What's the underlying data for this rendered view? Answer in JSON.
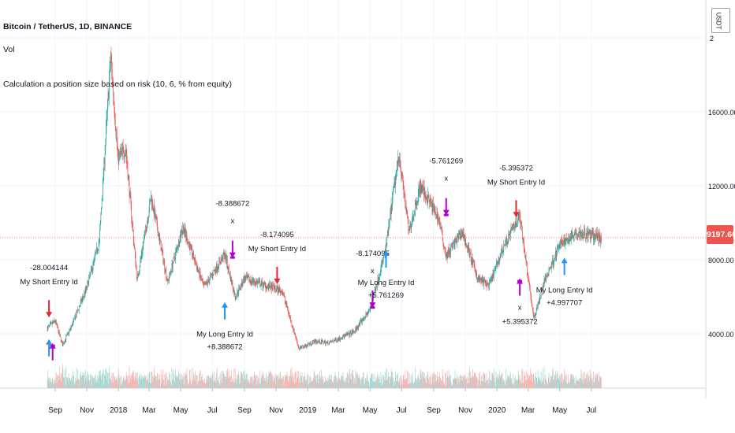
{
  "header": {
    "title": "Bitcoin / TetherUS, 1D, BINANCE",
    "volume_label": "Vol",
    "study_label": "Calculation a position size based on risk (10, 6, % from equity)"
  },
  "currency_button": "USDT",
  "last_price": "9197.60",
  "colors": {
    "up": "#26a69a",
    "down": "#ef5350",
    "long_arrow": "#2196f3",
    "exit_arrow": "#b000cc",
    "short_arrow": "#e8262e"
  },
  "chart_data": {
    "type": "candlestick",
    "y_ticks": [
      "2",
      "4000.00",
      "8000.00",
      "12000.00",
      "16000.00"
    ],
    "x_ticks": [
      "Sep",
      "Nov",
      "2018",
      "Mar",
      "May",
      "Jul",
      "Sep",
      "Nov",
      "2019",
      "Mar",
      "May",
      "Jul",
      "Sep",
      "Nov",
      "2020",
      "Mar",
      "May",
      "Jul"
    ],
    "price_path": [
      {
        "date": "2017-08-17",
        "close": 4300
      },
      {
        "date": "2017-09-01",
        "close": 4700
      },
      {
        "date": "2017-09-15",
        "close": 3400
      },
      {
        "date": "2017-10-01",
        "close": 4300
      },
      {
        "date": "2017-11-01",
        "close": 6500
      },
      {
        "date": "2017-11-25",
        "close": 9000
      },
      {
        "date": "2017-12-17",
        "close": 19000
      },
      {
        "date": "2017-12-31",
        "close": 13500
      },
      {
        "date": "2018-01-15",
        "close": 14000
      },
      {
        "date": "2018-02-06",
        "close": 6900
      },
      {
        "date": "2018-03-05",
        "close": 11400
      },
      {
        "date": "2018-04-06",
        "close": 6800
      },
      {
        "date": "2018-05-05",
        "close": 9800
      },
      {
        "date": "2018-06-15",
        "close": 6500
      },
      {
        "date": "2018-07-25",
        "close": 8300
      },
      {
        "date": "2018-08-14",
        "close": 6000
      },
      {
        "date": "2018-09-01",
        "close": 7000
      },
      {
        "date": "2018-11-13",
        "close": 6300
      },
      {
        "date": "2018-12-15",
        "close": 3200
      },
      {
        "date": "2019-01-15",
        "close": 3600
      },
      {
        "date": "2019-02-10",
        "close": 3500
      },
      {
        "date": "2019-03-31",
        "close": 4100
      },
      {
        "date": "2019-05-01",
        "close": 5300
      },
      {
        "date": "2019-05-31",
        "close": 8500
      },
      {
        "date": "2019-06-26",
        "close": 13800
      },
      {
        "date": "2019-07-15",
        "close": 9500
      },
      {
        "date": "2019-08-06",
        "close": 12000
      },
      {
        "date": "2019-09-10",
        "close": 10300
      },
      {
        "date": "2019-09-25",
        "close": 8200
      },
      {
        "date": "2019-10-26",
        "close": 9500
      },
      {
        "date": "2019-11-25",
        "close": 7000
      },
      {
        "date": "2019-12-17",
        "close": 6600
      },
      {
        "date": "2020-01-15",
        "close": 8800
      },
      {
        "date": "2020-02-14",
        "close": 10400
      },
      {
        "date": "2020-03-12",
        "close": 4800
      },
      {
        "date": "2020-04-01",
        "close": 6800
      },
      {
        "date": "2020-05-01",
        "close": 8800
      },
      {
        "date": "2020-06-01",
        "close": 9500
      },
      {
        "date": "2020-07-20",
        "close": 9197.6
      }
    ],
    "signals": [
      {
        "kind": "short",
        "label": "My Short Entry Id",
        "value": "-28.004144",
        "date": "2017-08-20",
        "anchor_price": 4800
      },
      {
        "kind": "long",
        "label": "",
        "value": "",
        "date": "2017-08-20",
        "anchor_price": 3800
      },
      {
        "kind": "exit",
        "label": "",
        "value": "",
        "date": "2017-08-27",
        "anchor_price": 3500
      },
      {
        "kind": "long",
        "label": "My Long Entry Id",
        "value": "+8.388672",
        "date": "2018-07-25",
        "anchor_price": 5800
      },
      {
        "kind": "exit",
        "label": "x",
        "value": "-8.388672",
        "date": "2018-08-09",
        "anchor_price": 8100
      },
      {
        "kind": "short",
        "label": "My Short Entry Id",
        "value": "-8.174095",
        "date": "2018-11-03",
        "anchor_price": 6600
      },
      {
        "kind": "exit",
        "label": "x",
        "value": "-8.174095",
        "date": "2019-05-06",
        "anchor_price": 5400
      },
      {
        "kind": "long",
        "label": "My Long Entry Id",
        "value": "+5.761269",
        "date": "2019-06-01",
        "anchor_price": 8600
      },
      {
        "kind": "exit",
        "label": "x",
        "value": "-5.761269",
        "date": "2019-09-25",
        "anchor_price": 10400
      },
      {
        "kind": "short",
        "label": "My Short Entry Id",
        "value": "-5.395372",
        "date": "2020-02-07",
        "anchor_price": 10200
      },
      {
        "kind": "exit",
        "label": "x",
        "value": "+5.395372",
        "date": "2020-02-14",
        "anchor_price": 7000
      },
      {
        "kind": "long",
        "label": "My Long Entry Id",
        "value": "+4.997707",
        "date": "2020-05-10",
        "anchor_price": 8200
      }
    ]
  }
}
